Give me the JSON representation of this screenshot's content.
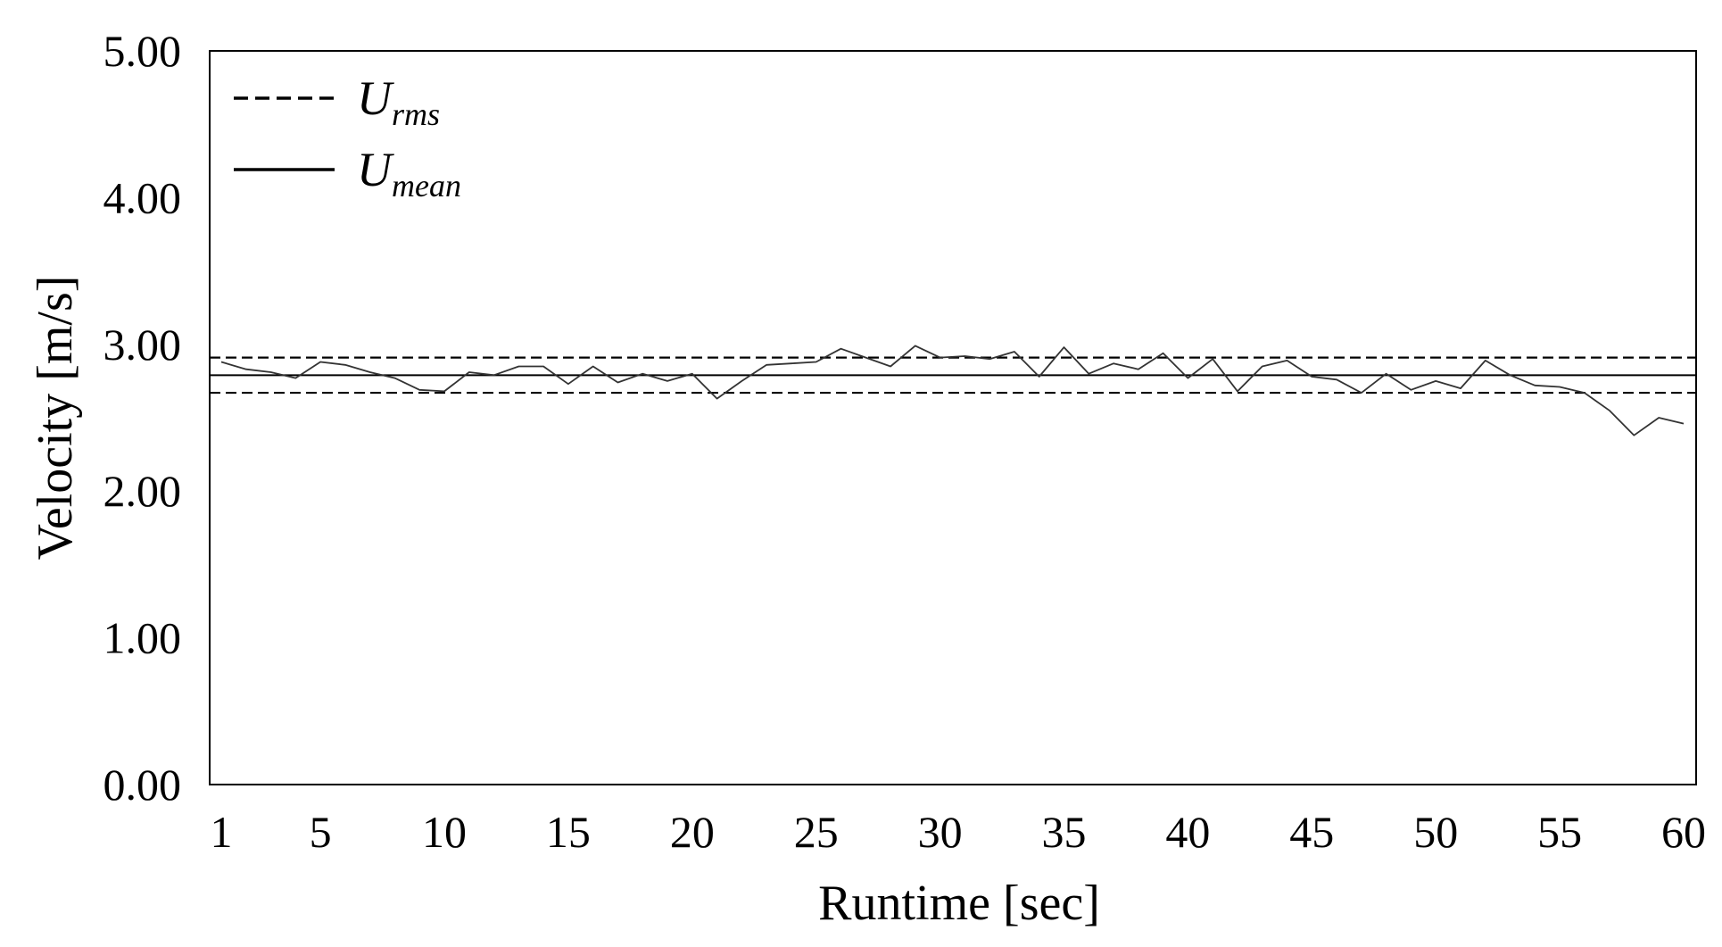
{
  "chart_data": {
    "type": "line",
    "title": "",
    "xlabel": "Runtime [sec]",
    "ylabel": "Velocity [m/s]",
    "xlim": [
      1,
      60
    ],
    "ylim": [
      0,
      5
    ],
    "x_ticks": [
      1,
      5,
      10,
      15,
      20,
      25,
      30,
      35,
      40,
      45,
      50,
      55,
      60
    ],
    "x_tick_labels": [
      "1",
      "5",
      "10",
      "15",
      "20",
      "25",
      "30",
      "35",
      "40",
      "45",
      "50",
      "55",
      "60"
    ],
    "y_ticks": [
      0,
      1,
      2,
      3,
      4,
      5
    ],
    "y_tick_labels": [
      "0.00",
      "1.00",
      "2.00",
      "3.00",
      "4.00",
      "5.00"
    ],
    "grid": false,
    "legend_position": "top-left",
    "legend": [
      {
        "symbol": "U",
        "subscript": "rms",
        "style": "dashed"
      },
      {
        "symbol": "U",
        "subscript": "mean",
        "style": "solid"
      }
    ],
    "reference_lines": {
      "u_rms_upper": 2.91,
      "u_rms_lower": 2.67,
      "u_mean": 2.79
    },
    "series": [
      {
        "x": [
          1,
          2,
          3,
          4,
          5,
          6,
          7,
          8,
          9,
          10,
          11,
          12,
          13,
          14,
          15,
          16,
          17,
          18,
          19,
          20,
          21,
          22,
          23,
          24,
          25,
          26,
          27,
          28,
          29,
          30,
          31,
          32,
          33,
          34,
          35,
          36,
          37,
          38,
          39,
          40,
          41,
          42,
          43,
          44,
          45,
          46,
          47,
          48,
          49,
          50,
          51,
          52,
          53,
          54,
          55,
          56,
          57,
          58,
          59,
          60
        ],
        "values": [
          2.88,
          2.83,
          2.81,
          2.77,
          2.88,
          2.86,
          2.81,
          2.77,
          2.69,
          2.68,
          2.81,
          2.79,
          2.85,
          2.85,
          2.73,
          2.85,
          2.74,
          2.8,
          2.75,
          2.8,
          2.63,
          2.75,
          2.86,
          2.87,
          2.88,
          2.97,
          2.91,
          2.85,
          2.99,
          2.91,
          2.92,
          2.9,
          2.95,
          2.78,
          2.98,
          2.8,
          2.87,
          2.83,
          2.94,
          2.77,
          2.9,
          2.68,
          2.85,
          2.89,
          2.78,
          2.76,
          2.67,
          2.8,
          2.69,
          2.75,
          2.7,
          2.89,
          2.79,
          2.72,
          2.71,
          2.67,
          2.55,
          2.38,
          2.5,
          2.46
        ]
      }
    ]
  }
}
